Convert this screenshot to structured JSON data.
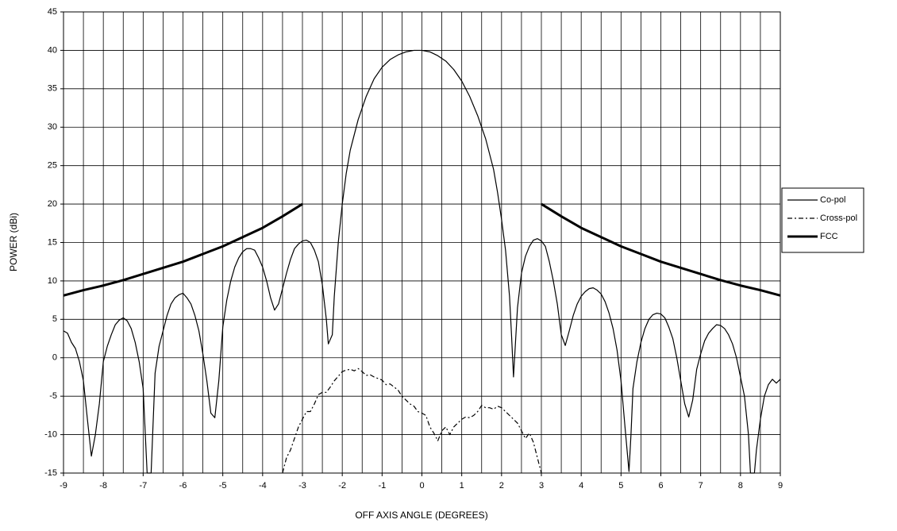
{
  "chart_data": {
    "type": "line",
    "xlabel": "OFF AXIS ANGLE (DEGREES)",
    "ylabel": "POWER (dBi)",
    "xlim": [
      -9,
      9
    ],
    "ylim": [
      -15,
      45
    ],
    "xticks": [
      -9,
      -8,
      -7,
      -6,
      -5,
      -4,
      -3,
      -2,
      -1,
      0,
      1,
      2,
      3,
      4,
      5,
      6,
      7,
      8,
      9
    ],
    "yticks": [
      -15,
      -10,
      -5,
      0,
      5,
      10,
      15,
      20,
      25,
      30,
      35,
      40,
      45
    ],
    "xgrid": [
      -9,
      -8.5,
      -8,
      -7.5,
      -7,
      -6.5,
      -6,
      -5.5,
      -5,
      -4.5,
      -4,
      -3.5,
      -3,
      -2.5,
      -2,
      -1.5,
      -1,
      -0.5,
      0,
      0.5,
      1,
      1.5,
      2,
      2.5,
      3,
      3.5,
      4,
      4.5,
      5,
      5.5,
      6,
      6.5,
      7,
      7.5,
      8,
      8.5,
      9
    ],
    "grid": true,
    "legend": "right",
    "series": [
      {
        "name": "Co-pol",
        "color": "#000000",
        "width": 1.2,
        "dash": "none",
        "x": [
          -9,
          -8.9,
          -8.8,
          -8.7,
          -8.6,
          -8.5,
          -8.4,
          -8.3,
          -8.2,
          -8.1,
          -8.0,
          -7.9,
          -7.8,
          -7.7,
          -7.6,
          -7.5,
          -7.4,
          -7.3,
          -7.2,
          -7.1,
          -7.0,
          -6.9,
          -6.8,
          -6.7,
          -6.6,
          -6.5,
          -6.4,
          -6.3,
          -6.2,
          -6.1,
          -6.0,
          -5.9,
          -5.8,
          -5.7,
          -5.6,
          -5.5,
          -5.4,
          -5.3,
          -5.2,
          -5.1,
          -5.0,
          -4.9,
          -4.8,
          -4.7,
          -4.6,
          -4.5,
          -4.4,
          -4.3,
          -4.2,
          -4.1,
          -4.0,
          -3.9,
          -3.8,
          -3.7,
          -3.6,
          -3.5,
          -3.4,
          -3.3,
          -3.2,
          -3.1,
          -3.0,
          -2.9,
          -2.8,
          -2.7,
          -2.6,
          -2.5,
          -2.4,
          -2.35,
          -2.25,
          -2.2,
          -2.1,
          -2.0,
          -1.9,
          -1.8,
          -1.6,
          -1.4,
          -1.2,
          -1.0,
          -0.8,
          -0.6,
          -0.4,
          -0.2,
          0,
          0.2,
          0.4,
          0.6,
          0.8,
          1.0,
          1.2,
          1.4,
          1.6,
          1.8,
          1.9,
          2.0,
          2.1,
          2.2,
          2.25,
          2.3,
          2.35,
          2.4,
          2.5,
          2.6,
          2.7,
          2.8,
          2.9,
          3.0,
          3.1,
          3.2,
          3.3,
          3.4,
          3.5,
          3.6,
          3.7,
          3.8,
          3.9,
          4.0,
          4.1,
          4.2,
          4.3,
          4.4,
          4.5,
          4.6,
          4.7,
          4.8,
          4.9,
          5.0,
          5.1,
          5.2,
          5.25,
          5.3,
          5.4,
          5.5,
          5.6,
          5.7,
          5.8,
          5.9,
          6.0,
          6.1,
          6.2,
          6.3,
          6.4,
          6.5,
          6.6,
          6.7,
          6.8,
          6.9,
          7.0,
          7.1,
          7.2,
          7.3,
          7.4,
          7.5,
          7.6,
          7.7,
          7.8,
          7.9,
          8.0,
          8.1,
          8.2,
          8.25,
          8.35,
          8.4,
          8.5,
          8.6,
          8.7,
          8.8,
          8.9,
          9.0
        ],
        "values": [
          3.5,
          3.2,
          2,
          1.2,
          -0.5,
          -3,
          -8,
          -12.8,
          -10,
          -6,
          -0.5,
          1.5,
          3,
          4.3,
          4.9,
          5.2,
          4.8,
          3.8,
          2,
          -0.5,
          -4,
          -15,
          -15,
          -2,
          1.5,
          3.5,
          5.5,
          7,
          7.8,
          8.2,
          8.4,
          7.8,
          7,
          5.5,
          3.5,
          0.5,
          -3,
          -7.2,
          -7.8,
          -3,
          4,
          7.5,
          10,
          11.8,
          13,
          13.8,
          14.2,
          14.2,
          14,
          13,
          11.8,
          10,
          7.8,
          6.2,
          7,
          9,
          11,
          12.8,
          14.2,
          14.8,
          15.2,
          15.3,
          15,
          14,
          12.5,
          9.5,
          5,
          1.8,
          3,
          8,
          15,
          20,
          24,
          27,
          31,
          34,
          36.3,
          37.8,
          38.8,
          39.4,
          39.8,
          40,
          40,
          39.8,
          39.3,
          38.6,
          37.5,
          36,
          34,
          31.5,
          28.5,
          24.5,
          21.5,
          18,
          14,
          8,
          3,
          -2.5,
          2,
          6.5,
          11,
          13.2,
          14.5,
          15.3,
          15.5,
          15.2,
          14.5,
          12.5,
          10,
          7,
          3,
          1.6,
          3.5,
          5.5,
          7,
          8,
          8.6,
          9,
          9.1,
          8.8,
          8.3,
          7.3,
          5.8,
          3.8,
          1,
          -3,
          -9,
          -14.8,
          -10,
          -4,
          -0.5,
          2,
          3.8,
          5,
          5.6,
          5.8,
          5.7,
          5.2,
          4,
          2.5,
          0,
          -3,
          -6,
          -7.7,
          -5.5,
          -1.5,
          0.5,
          2.2,
          3.2,
          3.8,
          4.3,
          4.2,
          3.8,
          3,
          1.8,
          0,
          -2.5,
          -5,
          -10,
          -15,
          -15,
          -12,
          -8,
          -5,
          -3.5,
          -2.8,
          -3.3,
          -2.8
        ]
      },
      {
        "name": "Cross-pol",
        "color": "#000000",
        "width": 1.2,
        "dash": "6 3 2 3",
        "x": [
          -3.5,
          -3.4,
          -3.3,
          -3.2,
          -3.1,
          -3.0,
          -2.9,
          -2.8,
          -2.7,
          -2.6,
          -2.5,
          -2.4,
          -2.3,
          -2.2,
          -2.1,
          -2.0,
          -1.9,
          -1.8,
          -1.7,
          -1.6,
          -1.5,
          -1.4,
          -1.3,
          -1.2,
          -1.1,
          -1.0,
          -0.9,
          -0.8,
          -0.7,
          -0.6,
          -0.5,
          -0.4,
          -0.3,
          -0.2,
          -0.1,
          0.0,
          0.1,
          0.2,
          0.3,
          0.4,
          0.5,
          0.6,
          0.7,
          0.8,
          0.9,
          1.0,
          1.1,
          1.2,
          1.3,
          1.4,
          1.5,
          1.6,
          1.7,
          1.8,
          1.9,
          2.0,
          2.1,
          2.2,
          2.3,
          2.4,
          2.5,
          2.6,
          2.7,
          2.8,
          2.9,
          3.0
        ],
        "values": [
          -15,
          -13,
          -12,
          -10.5,
          -9,
          -8,
          -7,
          -7,
          -6,
          -4.8,
          -4.5,
          -4.5,
          -3.8,
          -3,
          -2.4,
          -1.8,
          -1.6,
          -1.5,
          -1.7,
          -1.4,
          -1.8,
          -2.3,
          -2.2,
          -2.5,
          -2.7,
          -2.9,
          -3.5,
          -3.4,
          -3.8,
          -4.2,
          -5,
          -5.5,
          -6,
          -6.3,
          -7,
          -7.2,
          -7.5,
          -9,
          -9.8,
          -10.8,
          -9.5,
          -9,
          -10,
          -9,
          -8.5,
          -8,
          -7.7,
          -7.8,
          -7.5,
          -7,
          -6.2,
          -6.5,
          -6.5,
          -6.7,
          -6.3,
          -6.5,
          -7,
          -7.5,
          -8,
          -8.5,
          -9.5,
          -10.5,
          -9.8,
          -11,
          -13,
          -15
        ]
      },
      {
        "name": "FCC",
        "color": "#000000",
        "width": 3,
        "dash": "none",
        "x": [
          -9,
          -8.5,
          -8,
          -7.5,
          -7,
          -6.5,
          -6,
          -5.5,
          -5,
          -4.5,
          -4,
          -3.5,
          -3,
          0,
          3,
          3.5,
          4,
          4.5,
          5,
          5.5,
          6,
          6.5,
          7,
          7.5,
          8,
          8.5,
          9
        ],
        "values": [
          8.1,
          8.8,
          9.4,
          10.1,
          10.9,
          11.7,
          12.5,
          13.5,
          14.5,
          15.7,
          16.9,
          18.4,
          20,
          null,
          20,
          18.4,
          16.9,
          15.7,
          14.5,
          13.5,
          12.5,
          11.7,
          10.9,
          10.1,
          9.4,
          8.8,
          8.1
        ]
      }
    ]
  }
}
